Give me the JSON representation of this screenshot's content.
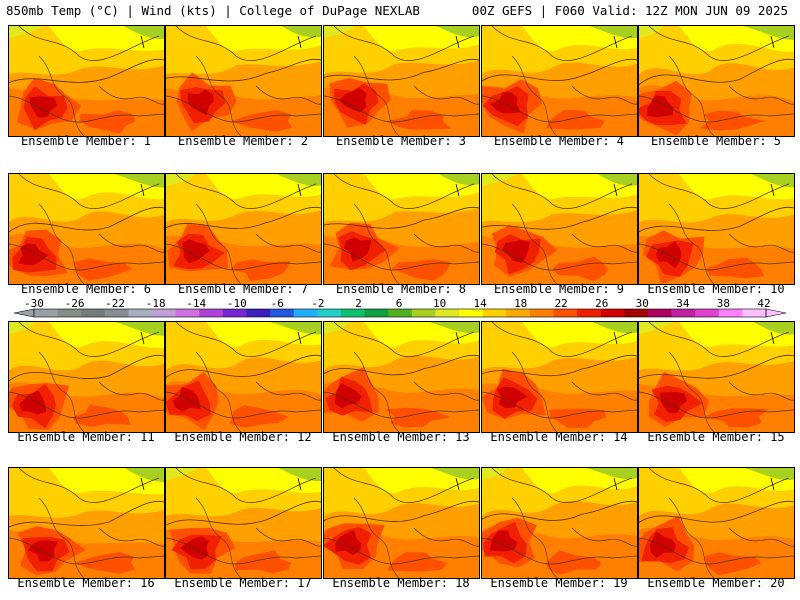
{
  "header": {
    "title_left": "850mb Temp (°C) | Wind (kts) | College of DuPage NEXLAB",
    "title_right": "00Z GEFS | F060 Valid: 12Z MON JUN 09 2025"
  },
  "member_label_prefix": "Ensemble Member: ",
  "members": [
    1,
    2,
    3,
    4,
    5,
    6,
    7,
    8,
    9,
    10,
    11,
    12,
    13,
    14,
    15,
    16,
    17,
    18,
    19,
    20
  ],
  "colorbar": {
    "tick_labels": [
      "-30",
      "-26",
      "-22",
      "-18",
      "-14",
      "-10",
      "-6",
      "-2",
      "2",
      "6",
      "10",
      "14",
      "18",
      "22",
      "26",
      "30",
      "34",
      "38",
      "42"
    ],
    "colors": [
      "#9aa0a4",
      "#848d88",
      "#757d7a",
      "#8a8c94",
      "#a6b0c0",
      "#c0a0d8",
      "#d070e0",
      "#b040d8",
      "#7828d0",
      "#3c20c0",
      "#2058e0",
      "#20b0ff",
      "#20d0c8",
      "#10c070",
      "#10a040",
      "#50b020",
      "#a8d020",
      "#e0e820",
      "#ffff00",
      "#ffd000",
      "#ffaa00",
      "#ff8000",
      "#ff5000",
      "#f02000",
      "#d00000",
      "#a00000",
      "#b00060",
      "#c020a0",
      "#e040d0",
      "#ff80ff",
      "#ffc0ff"
    ]
  }
}
